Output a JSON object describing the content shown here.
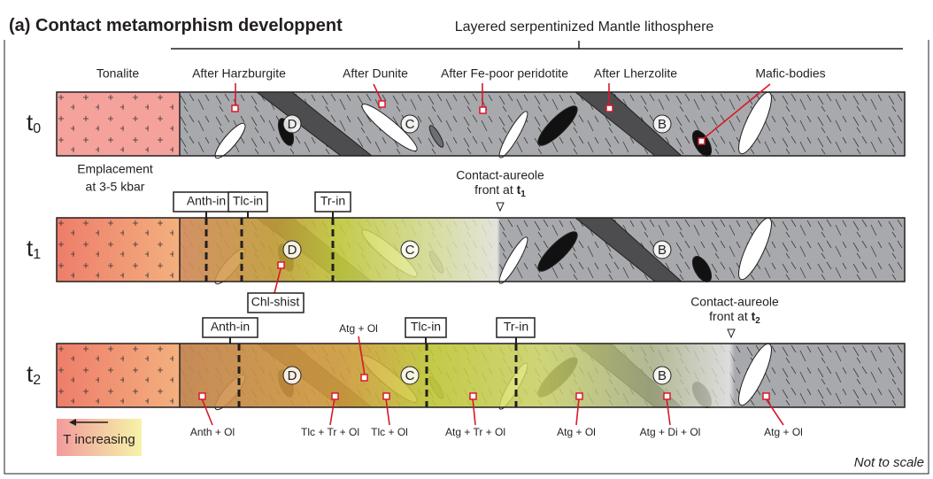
{
  "title": {
    "panel": "(a)",
    "text": "Contact metamorphism developpent"
  },
  "header": "Layered serpentinized Mantle lithosphere",
  "labels": {
    "tonalite": "Tonalite",
    "harzburgite": "After Harzburgite",
    "dunite": "After Dunite",
    "fe_poor": "After Fe-poor peridotite",
    "lherzolite": "After Lherzolite",
    "mafic": "Mafic-bodies"
  },
  "emplacement": [
    "Emplacement",
    "at 3-5 kbar"
  ],
  "times": [
    {
      "t": "t",
      "sub": "0"
    },
    {
      "t": "t",
      "sub": "1"
    },
    {
      "t": "t",
      "sub": "2"
    }
  ],
  "bodies": [
    "D",
    "C",
    "B"
  ],
  "isograds": {
    "anth": "Anth-in",
    "tlc": "Tlc-in",
    "tr": "Tr-in"
  },
  "chl_shist": "Chl-shist",
  "front": [
    "Contact-aureole",
    "front at"
  ],
  "assemblages": [
    "Atg + Ol",
    "Anth + Ol",
    "Tlc + Tr + Ol",
    "Tlc + Ol",
    "Atg + Tr + Ol",
    "Atg + Ol",
    "Atg + Di + Ol",
    "Atg + Ol"
  ],
  "legend": "T increasing",
  "note": "Not to scale"
}
